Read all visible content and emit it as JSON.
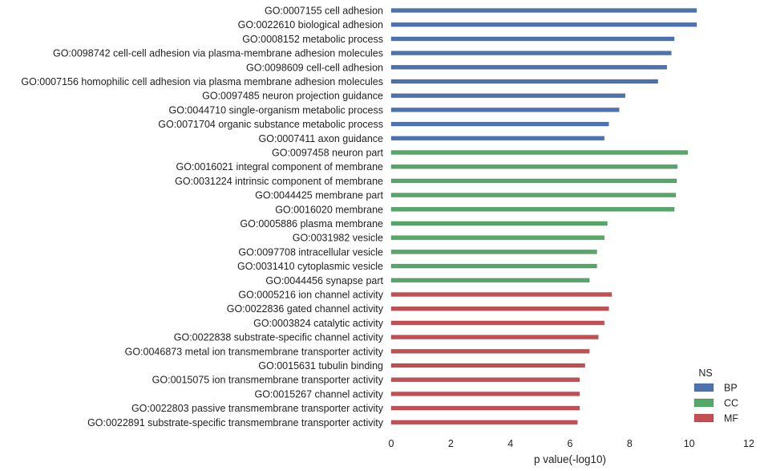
{
  "chart_data": {
    "type": "bar",
    "orientation": "horizontal",
    "xlabel": "p value(-log10)",
    "ylabel": "",
    "xlim": [
      0,
      12
    ],
    "xticks": [
      0,
      2,
      4,
      6,
      8,
      10,
      12
    ],
    "grid": false,
    "legend": {
      "title": "NS",
      "placement": "bottom-right",
      "entries": [
        {
          "name": "BP",
          "color": "#4c72b0"
        },
        {
          "name": "CC",
          "color": "#55a868"
        },
        {
          "name": "MF",
          "color": "#c44e52"
        }
      ]
    },
    "bars": [
      {
        "label": "GO:0007155 cell adhesion",
        "group": "BP",
        "value": 10.25
      },
      {
        "label": "GO:0022610 biological adhesion",
        "group": "BP",
        "value": 10.25
      },
      {
        "label": "GO:0008152 metabolic process",
        "group": "BP",
        "value": 9.5
      },
      {
        "label": "GO:0098742 cell-cell adhesion via plasma-membrane adhesion molecules",
        "group": "BP",
        "value": 9.4
      },
      {
        "label": "GO:0098609 cell-cell adhesion",
        "group": "BP",
        "value": 9.25
      },
      {
        "label": "GO:0007156 homophilic cell adhesion via plasma membrane adhesion molecules",
        "group": "BP",
        "value": 8.95
      },
      {
        "label": "GO:0097485 neuron projection guidance",
        "group": "BP",
        "value": 7.85
      },
      {
        "label": "GO:0044710 single-organism metabolic process",
        "group": "BP",
        "value": 7.65
      },
      {
        "label": "GO:0071704 organic substance metabolic process",
        "group": "BP",
        "value": 7.3
      },
      {
        "label": "GO:0007411 axon guidance",
        "group": "BP",
        "value": 7.15
      },
      {
        "label": "GO:0097458 neuron part",
        "group": "CC",
        "value": 9.95
      },
      {
        "label": "GO:0016021 integral component of membrane",
        "group": "CC",
        "value": 9.6
      },
      {
        "label": "GO:0031224 intrinsic component of membrane",
        "group": "CC",
        "value": 9.58
      },
      {
        "label": "GO:0044425 membrane part",
        "group": "CC",
        "value": 9.55
      },
      {
        "label": "GO:0016020 membrane",
        "group": "CC",
        "value": 9.5
      },
      {
        "label": "GO:0005886 plasma membrane",
        "group": "CC",
        "value": 7.25
      },
      {
        "label": "GO:0031982 vesicle",
        "group": "CC",
        "value": 7.15
      },
      {
        "label": "GO:0097708 intracellular vesicle",
        "group": "CC",
        "value": 6.9
      },
      {
        "label": "GO:0031410 cytoplasmic vesicle",
        "group": "CC",
        "value": 6.9
      },
      {
        "label": "GO:0044456 synapse part",
        "group": "CC",
        "value": 6.65
      },
      {
        "label": "GO:0005216 ion channel activity",
        "group": "MF",
        "value": 7.4
      },
      {
        "label": "GO:0022836 gated channel activity",
        "group": "MF",
        "value": 7.3
      },
      {
        "label": "GO:0003824 catalytic activity",
        "group": "MF",
        "value": 7.15
      },
      {
        "label": "GO:0022838 substrate-specific channel activity",
        "group": "MF",
        "value": 6.95
      },
      {
        "label": "GO:0046873 metal ion transmembrane transporter activity",
        "group": "MF",
        "value": 6.65
      },
      {
        "label": "GO:0015631 tubulin binding",
        "group": "MF",
        "value": 6.5
      },
      {
        "label": "GO:0015075 ion transmembrane transporter activity",
        "group": "MF",
        "value": 6.32
      },
      {
        "label": "GO:0015267 channel activity",
        "group": "MF",
        "value": 6.32
      },
      {
        "label": "GO:0022803 passive transmembrane transporter activity",
        "group": "MF",
        "value": 6.32
      },
      {
        "label": "GO:0022891 substrate-specific transmembrane transporter activity",
        "group": "MF",
        "value": 6.25
      }
    ]
  }
}
